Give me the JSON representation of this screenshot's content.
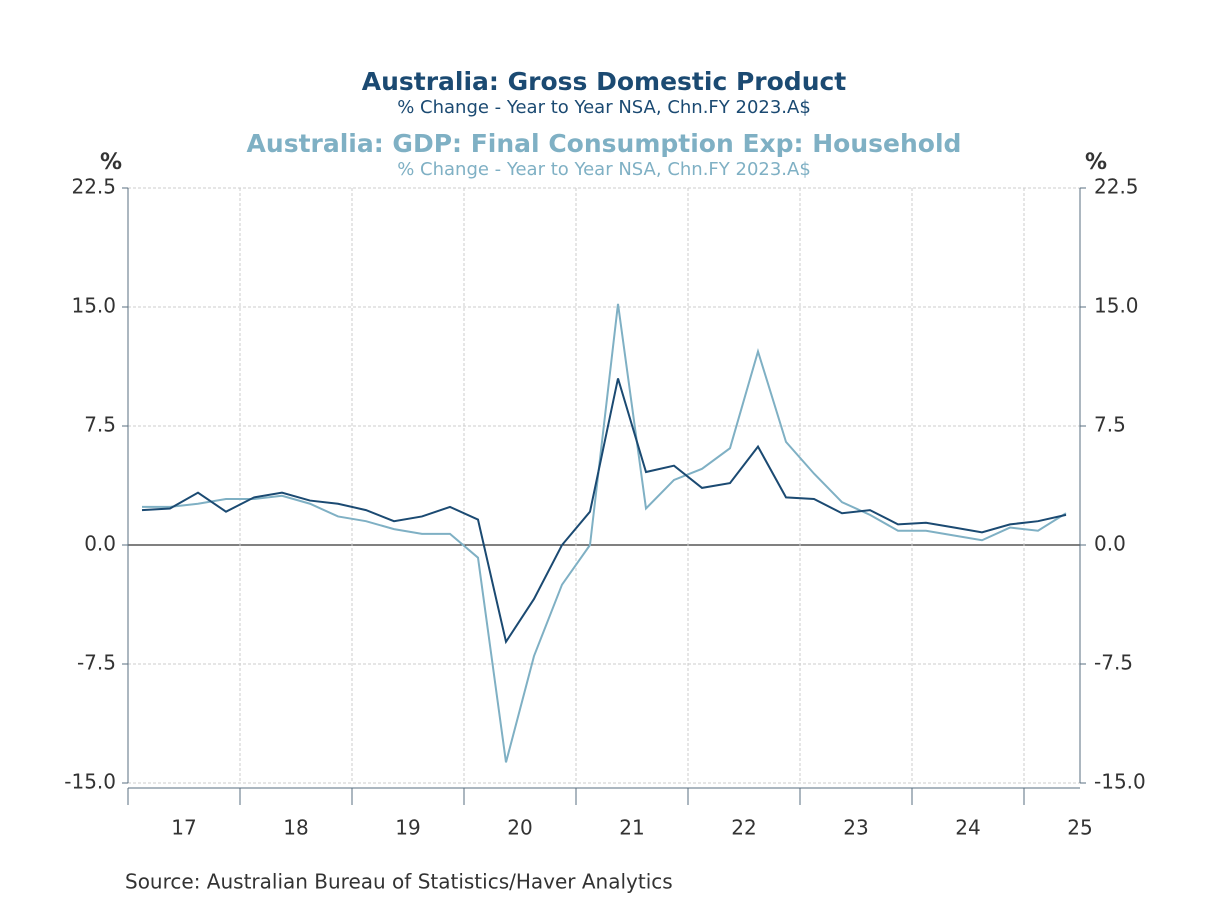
{
  "chart_data": {
    "type": "line",
    "title": "Australia: Gross Domestic Product",
    "subtitle": "% Change - Year to Year    NSA, Chn.FY 2023.A$",
    "title2": "Australia: GDP: Final Consumption Exp: Household",
    "subtitle2": "% Change - Year to Year    NSA, Chn.FY 2023.A$",
    "y_label": "%",
    "y2_label": "%",
    "source": "Source:  Australian Bureau of Statistics/Haver Analytics",
    "x": [
      2017.125,
      2017.375,
      2017.625,
      2017.875,
      2018.125,
      2018.375,
      2018.625,
      2018.875,
      2019.125,
      2019.375,
      2019.625,
      2019.875,
      2020.125,
      2020.375,
      2020.625,
      2020.875,
      2021.125,
      2021.375,
      2021.625,
      2021.875,
      2022.125,
      2022.375,
      2022.625,
      2022.875,
      2023.125,
      2023.375,
      2023.625,
      2023.875,
      2024.125,
      2024.375,
      2024.625,
      2024.875,
      2025.125,
      2025.375
    ],
    "series": [
      {
        "name": "Australia: Gross Domestic Product",
        "color": "#1b4a72",
        "values": [
          2.2,
          2.3,
          3.3,
          2.1,
          3.0,
          3.3,
          2.8,
          2.6,
          2.2,
          1.5,
          1.8,
          2.4,
          1.6,
          -6.1,
          -3.4,
          0.0,
          2.1,
          10.5,
          4.6,
          5.0,
          3.6,
          3.9,
          6.2,
          3.0,
          2.9,
          2.0,
          2.2,
          1.3,
          1.4,
          1.1,
          0.8,
          1.3,
          1.5,
          1.9
        ]
      },
      {
        "name": "Australia: GDP: Final Consumption Exp: Household",
        "color": "#7fb0c4",
        "axis": "y2",
        "values": [
          2.4,
          2.4,
          2.6,
          2.9,
          2.9,
          3.1,
          2.6,
          1.8,
          1.5,
          1.0,
          0.7,
          0.7,
          -0.8,
          -13.7,
          -7.0,
          -2.5,
          0.0,
          15.2,
          2.3,
          4.1,
          4.8,
          6.1,
          12.2,
          6.5,
          4.5,
          2.7,
          1.9,
          0.9,
          0.9,
          0.6,
          0.3,
          1.1,
          0.9,
          2.0
        ]
      }
    ],
    "xlim": [
      2017,
      2025.5
    ],
    "xticks": [
      {
        "value": 2017,
        "label": "17"
      },
      {
        "value": 2018,
        "label": "18"
      },
      {
        "value": 2019,
        "label": "19"
      },
      {
        "value": 2020,
        "label": "20"
      },
      {
        "value": 2021,
        "label": "21"
      },
      {
        "value": 2022,
        "label": "22"
      },
      {
        "value": 2023,
        "label": "23"
      },
      {
        "value": 2024,
        "label": "24"
      },
      {
        "value": 2025,
        "label": "25"
      }
    ],
    "ylim": [
      -15,
      22.5
    ],
    "yticks": [
      {
        "value": -15,
        "label": "-15.0"
      },
      {
        "value": -7.5,
        "label": "-7.5"
      },
      {
        "value": 0,
        "label": "0.0"
      },
      7.5,
      {
        "value": 15,
        "label": "15.0"
      },
      22.5
    ],
    "y2lim": [
      -15,
      22.5
    ],
    "y2ticks": [
      {
        "value": -15,
        "label": "-15.0"
      },
      {
        "value": -7.5,
        "label": "-7.5"
      },
      {
        "value": 0,
        "label": "0.0"
      },
      7.5,
      {
        "value": 15,
        "label": "15.0"
      },
      22.5
    ],
    "grid": true
  }
}
